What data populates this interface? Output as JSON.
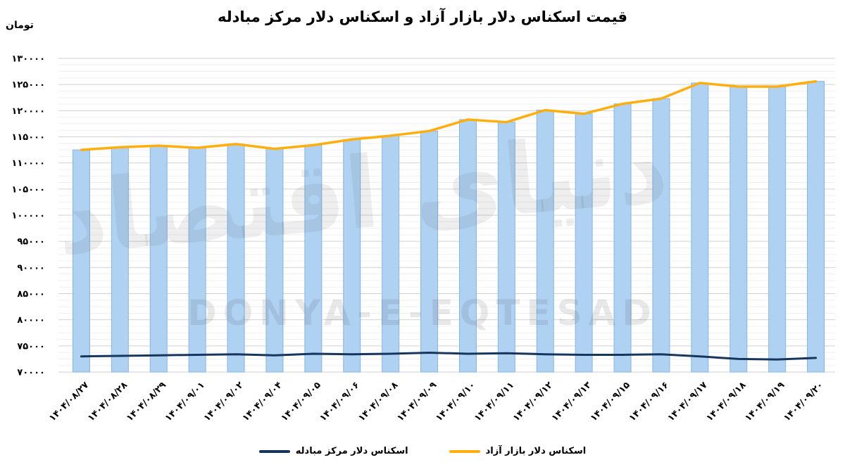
{
  "title": "قیمت اسکناس دلار بازار آزاد و اسکناس دلار مرکز مبادله",
  "y_unit_label": "تومان",
  "watermark": {
    "fa": "دنیای اقتصاد",
    "en": "DONYA-E-EQTESAD"
  },
  "legend": [
    {
      "label": "اسکناس دلار مرکز مبادله",
      "color": "#17365D"
    },
    {
      "label": "اسکناس دلار بازار آزاد",
      "color": "#FFAF0D"
    }
  ],
  "chart_data": {
    "type": "bar",
    "title": "قیمت اسکناس دلار بازار آزاد و اسکناس دلار مرکز مبادله",
    "ylabel": "تومان",
    "xlabel": "",
    "grid": true,
    "legend_position": "bottom",
    "categories": [
      "۱۴۰۴/۰۸/۲۷",
      "۱۴۰۴/۰۸/۲۸",
      "۱۴۰۴/۰۸/۲۹",
      "۱۴۰۴/۰۹/۰۱",
      "۱۴۰۴/۰۹/۰۲",
      "۱۴۰۴/۰۹/۰۴",
      "۱۴۰۴/۰۹/۰۵",
      "۱۴۰۴/۰۹/۰۶",
      "۱۴۰۴/۰۹/۰۸",
      "۱۴۰۴/۰۹/۰۹",
      "۱۴۰۴/۰۹/۱۰",
      "۱۴۰۴/۰۹/۱۱",
      "۱۴۰۴/۰۹/۱۲",
      "۱۴۰۴/۰۹/۱۳",
      "۱۴۰۴/۰۹/۱۵",
      "۱۴۰۴/۰۹/۱۶",
      "۱۴۰۴/۰۹/۱۷",
      "۱۴۰۴/۰۹/۱۸",
      "۱۴۰۴/۰۹/۱۹",
      "۱۴۰۴/۰۹/۲۰"
    ],
    "series": [
      {
        "name": "اسکناس دلار بازار آزاد",
        "render": "bars+line",
        "color": "#FFAF0D",
        "line_width": 3.5,
        "values": [
          112500,
          113000,
          113300,
          112900,
          113600,
          112700,
          113400,
          114500,
          115200,
          116100,
          118300,
          117800,
          120100,
          119400,
          121300,
          122300,
          125300,
          124600,
          124600,
          125600
        ]
      },
      {
        "name": "اسکناس دلار مرکز مبادله",
        "render": "line",
        "color": "#17365D",
        "line_width": 3,
        "values": [
          73000,
          73100,
          73200,
          73300,
          73400,
          73200,
          73500,
          73400,
          73500,
          73700,
          73500,
          73600,
          73400,
          73300,
          73300,
          73400,
          73000,
          72500,
          72400,
          72700
        ]
      }
    ],
    "y_axis": {
      "min": 70000,
      "max": 130000,
      "major_step": 5000,
      "minor_step": 1250,
      "ticks": [
        {
          "value": 130000,
          "fa": "۱۳۰۰۰۰"
        },
        {
          "value": 125000,
          "fa": "۱۲۵۰۰۰"
        },
        {
          "value": 120000,
          "fa": "۱۲۰۰۰۰"
        },
        {
          "value": 115000,
          "fa": "۱۱۵۰۰۰"
        },
        {
          "value": 110000,
          "fa": "۱۱۰۰۰۰"
        },
        {
          "value": 105000,
          "fa": "۱۰۵۰۰۰"
        },
        {
          "value": 100000,
          "fa": "۱۰۰۰۰۰"
        },
        {
          "value": 95000,
          "fa": "۹۵۰۰۰"
        },
        {
          "value": 90000,
          "fa": "۹۰۰۰۰"
        },
        {
          "value": 85000,
          "fa": "۸۵۰۰۰"
        },
        {
          "value": 80000,
          "fa": "۸۰۰۰۰"
        },
        {
          "value": 75000,
          "fa": "۷۵۰۰۰"
        },
        {
          "value": 70000,
          "fa": "۷۰۰۰۰"
        }
      ]
    },
    "colors": {
      "bar_fill": "#AFD2F3",
      "bar_stroke": "#88B5E3",
      "grid_major": "#D2D2D2",
      "grid_minor": "#F0F0F0"
    }
  }
}
